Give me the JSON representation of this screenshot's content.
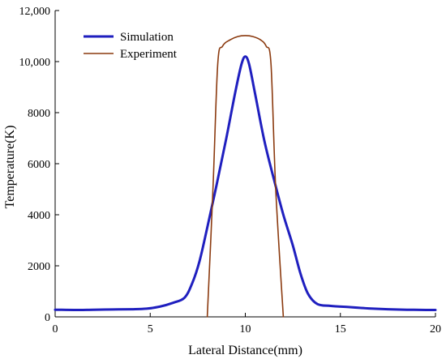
{
  "chart_data": {
    "type": "line",
    "xlabel": "Lateral Distance(mm)",
    "ylabel": "Temperature(K)",
    "xlim": [
      0,
      20
    ],
    "ylim": [
      0,
      12000
    ],
    "x_ticks": [
      0,
      5,
      10,
      15,
      20
    ],
    "x_tick_labels": [
      "0",
      "5",
      "10",
      "15",
      "20"
    ],
    "y_ticks": [
      0,
      2000,
      4000,
      6000,
      8000,
      10000,
      12000
    ],
    "y_tick_labels": [
      "0",
      "2000",
      "4000",
      "6000",
      "8000",
      "10,000",
      "12,000"
    ],
    "grid": false,
    "legend_position": "top-left",
    "series": [
      {
        "name": "Simulation",
        "color": "#1f1fbf",
        "x": [
          0,
          1,
          2,
          3,
          4,
          4.8,
          5.5,
          6.2,
          6.8,
          7.2,
          7.6,
          8.0,
          8.5,
          9.0,
          9.5,
          9.8,
          10.0,
          10.2,
          10.5,
          11.0,
          11.5,
          12.0,
          12.5,
          12.9,
          13.3,
          13.8,
          14.5,
          15.5,
          16.5,
          17.5,
          18.5,
          19.5,
          20
        ],
        "y": [
          280,
          270,
          280,
          290,
          300,
          320,
          400,
          550,
          750,
          1300,
          2200,
          3500,
          5200,
          7000,
          8900,
          9900,
          10200,
          9900,
          8800,
          6900,
          5400,
          4000,
          2800,
          1700,
          900,
          500,
          430,
          380,
          330,
          300,
          280,
          270,
          270
        ]
      },
      {
        "name": "Experiment",
        "color": "#8b3a0f",
        "x": [
          8.0,
          8.3,
          8.55,
          8.8,
          9.2,
          9.6,
          10.0,
          10.4,
          10.8,
          11.1,
          11.35,
          11.6,
          12.0
        ],
        "y": [
          0,
          5000,
          9900,
          10600,
          10850,
          10980,
          11020,
          10980,
          10850,
          10600,
          9900,
          5000,
          0
        ]
      }
    ]
  }
}
